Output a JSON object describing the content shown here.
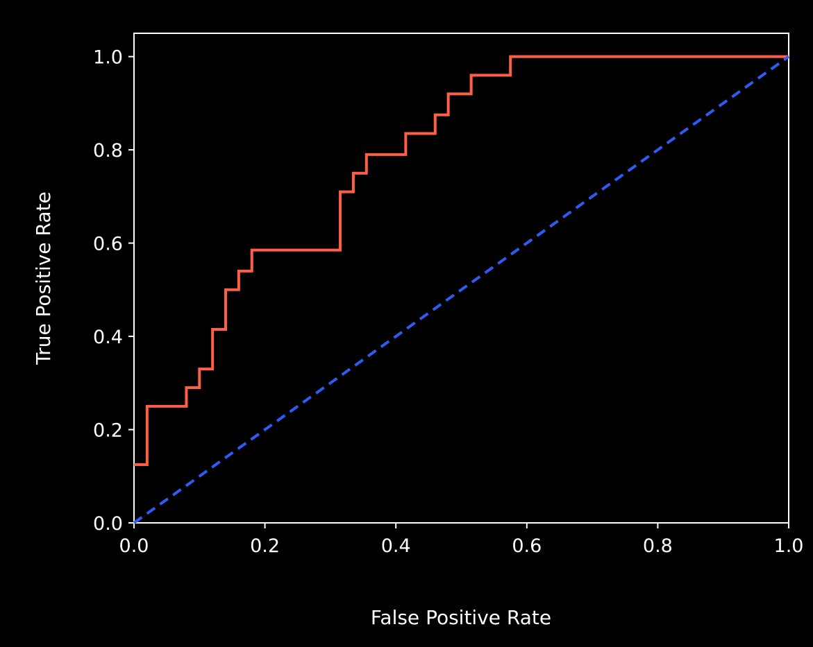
{
  "chart_data": {
    "type": "line",
    "title": "",
    "xlabel": "False Positive Rate",
    "ylabel": "True Positive Rate",
    "xlim": [
      0.0,
      1.0
    ],
    "ylim": [
      0.0,
      1.05
    ],
    "xticks": [
      "0.0",
      "0.2",
      "0.4",
      "0.6",
      "0.8",
      "1.0"
    ],
    "yticks": [
      "0.0",
      "0.2",
      "0.4",
      "0.6",
      "0.8",
      "1.0"
    ],
    "grid": false,
    "legend": "none",
    "series": [
      {
        "style": "solid-step",
        "color": "#ff5f45",
        "points": [
          [
            0.0,
            0.125
          ],
          [
            0.02,
            0.125
          ],
          [
            0.02,
            0.25
          ],
          [
            0.08,
            0.25
          ],
          [
            0.08,
            0.29
          ],
          [
            0.1,
            0.29
          ],
          [
            0.1,
            0.33
          ],
          [
            0.12,
            0.33
          ],
          [
            0.12,
            0.415
          ],
          [
            0.14,
            0.415
          ],
          [
            0.14,
            0.5
          ],
          [
            0.16,
            0.5
          ],
          [
            0.16,
            0.54
          ],
          [
            0.18,
            0.54
          ],
          [
            0.18,
            0.585
          ],
          [
            0.315,
            0.585
          ],
          [
            0.315,
            0.71
          ],
          [
            0.335,
            0.71
          ],
          [
            0.335,
            0.75
          ],
          [
            0.355,
            0.75
          ],
          [
            0.355,
            0.79
          ],
          [
            0.415,
            0.79
          ],
          [
            0.415,
            0.835
          ],
          [
            0.46,
            0.835
          ],
          [
            0.46,
            0.875
          ],
          [
            0.48,
            0.875
          ],
          [
            0.48,
            0.92
          ],
          [
            0.515,
            0.92
          ],
          [
            0.515,
            0.96
          ],
          [
            0.575,
            0.96
          ],
          [
            0.575,
            1.0
          ],
          [
            1.0,
            1.0
          ]
        ]
      },
      {
        "style": "dashed",
        "color": "#2f5bf5",
        "points": [
          [
            0.0,
            0.0
          ],
          [
            1.0,
            1.0
          ]
        ]
      }
    ]
  }
}
